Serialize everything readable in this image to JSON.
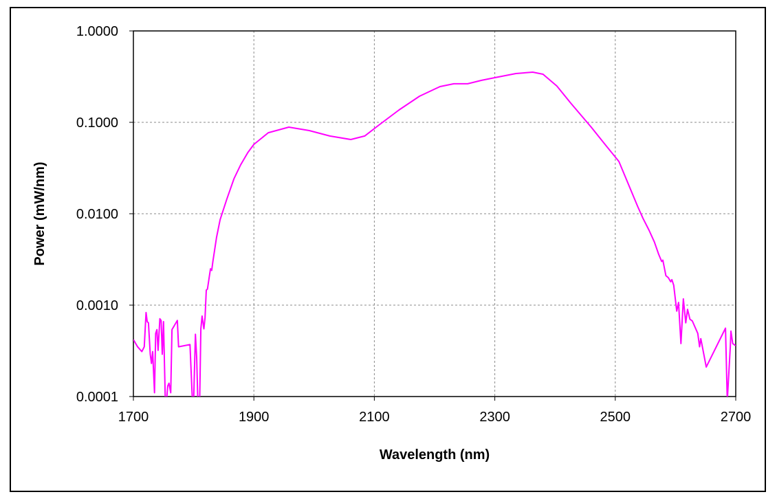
{
  "chart_data": {
    "type": "line",
    "title": "",
    "xlabel": "Wavelength (nm)",
    "ylabel": "Power (mW/nm)",
    "xlim": [
      1700,
      2700
    ],
    "ylim": [
      0.0001,
      1.0
    ],
    "yscale": "log",
    "grid": true,
    "legend": "none",
    "x_ticks": [
      "1700",
      "1900",
      "2100",
      "2300",
      "2500",
      "2700"
    ],
    "x_tick_values": [
      1700,
      1900,
      2100,
      2300,
      2500,
      2700
    ],
    "y_ticks": [
      "1.0000",
      "0.1000",
      "0.0100",
      "0.0010",
      "0.0001"
    ],
    "y_tick_values": [
      1.0,
      0.1,
      0.01,
      0.001,
      0.0001
    ],
    "series": [
      {
        "name": "Power",
        "color": "#ff00ff",
        "x": [
          1700,
          1707,
          1714,
          1718,
          1721,
          1723,
          1725,
          1728,
          1730,
          1732,
          1735,
          1737,
          1739,
          1741,
          1744,
          1746,
          1748,
          1750,
          1753,
          1755,
          1757,
          1759,
          1762,
          1764,
          1773,
          1775,
          1794,
          1798,
          1800,
          1803,
          1805,
          1807,
          1810,
          1812,
          1814,
          1817,
          1819,
          1821,
          1823,
          1828,
          1830,
          1832,
          1838,
          1844,
          1855,
          1867,
          1878,
          1890,
          1900,
          1924,
          1958,
          1992,
          2026,
          2061,
          2084,
          2106,
          2141,
          2175,
          2209,
          2232,
          2255,
          2278,
          2300,
          2335,
          2363,
          2380,
          2403,
          2426,
          2460,
          2483,
          2506,
          2537,
          2546,
          2556,
          2565,
          2572,
          2577,
          2579,
          2584,
          2588,
          2592,
          2594,
          2597,
          2602,
          2605,
          2609,
          2613,
          2617,
          2620,
          2624,
          2628,
          2637,
          2640,
          2642,
          2651,
          2683,
          2686,
          2691,
          2692,
          2695,
          2700
        ],
        "y": [
          0.00042,
          0.00035,
          0.00031,
          0.00035,
          0.00083,
          0.00066,
          0.00064,
          0.00029,
          0.00023,
          0.00031,
          0.00011,
          0.00049,
          0.00054,
          0.00032,
          0.00071,
          0.00068,
          0.00029,
          0.00066,
          9e-05,
          9e-05,
          0.00013,
          0.00014,
          0.00011,
          0.00054,
          0.00068,
          0.00035,
          0.00037,
          9e-05,
          9e-05,
          0.00048,
          0.00027,
          9e-05,
          9e-05,
          0.00055,
          0.00076,
          0.00055,
          0.00073,
          0.00146,
          0.0015,
          0.0025,
          0.0024,
          0.003,
          0.0055,
          0.0086,
          0.0144,
          0.0242,
          0.0342,
          0.0467,
          0.0574,
          0.077,
          0.0886,
          0.0813,
          0.0708,
          0.0649,
          0.0708,
          0.0917,
          0.1366,
          0.193,
          0.246,
          0.264,
          0.264,
          0.288,
          0.308,
          0.342,
          0.354,
          0.336,
          0.25,
          0.1625,
          0.0886,
          0.0574,
          0.0373,
          0.0121,
          0.0089,
          0.0066,
          0.0049,
          0.0036,
          0.003,
          0.0031,
          0.0021,
          0.002,
          0.0018,
          0.0019,
          0.00165,
          0.00086,
          0.00107,
          0.00038,
          0.00117,
          0.00064,
          0.0009,
          0.0007,
          0.00067,
          0.00049,
          0.00035,
          0.00043,
          0.00021,
          0.00056,
          9e-05,
          0.00035,
          0.00052,
          0.00038,
          0.00036
        ]
      }
    ]
  }
}
